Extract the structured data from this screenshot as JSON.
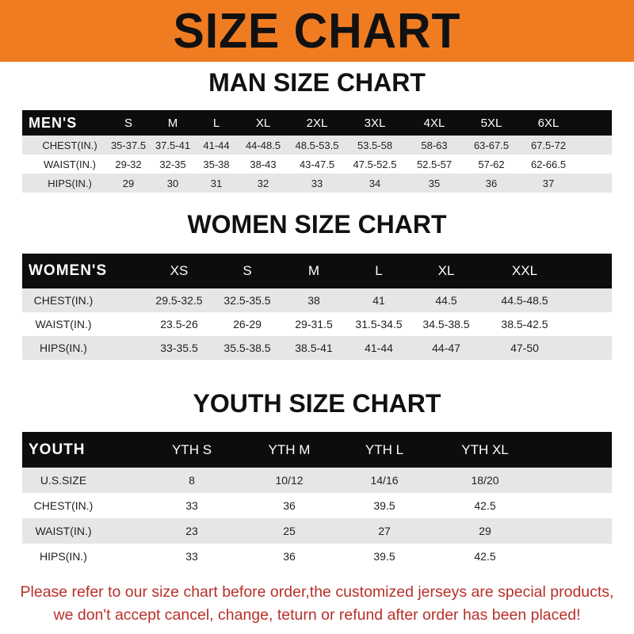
{
  "banner": {
    "title": "SIZE CHART",
    "color": "#f07c22"
  },
  "men": {
    "title": "MAN SIZE CHART",
    "headers": [
      "MEN'S",
      "S",
      "M",
      "L",
      "XL",
      "2XL",
      "3XL",
      "4XL",
      "5XL",
      "6XL"
    ],
    "rows": [
      [
        "CHEST(IN.)",
        "35-37.5",
        "37.5-41",
        "41-44",
        "44-48.5",
        "48.5-53.5",
        "53.5-58",
        "58-63",
        "63-67.5",
        "67.5-72"
      ],
      [
        "WAIST(IN.)",
        "29-32",
        "32-35",
        "35-38",
        "38-43",
        "43-47.5",
        "47.5-52.5",
        "52.5-57",
        "57-62",
        "62-66.5"
      ],
      [
        "HIPS(IN.)",
        "29",
        "30",
        "31",
        "32",
        "33",
        "34",
        "35",
        "36",
        "37"
      ]
    ]
  },
  "women": {
    "title": "WOMEN SIZE CHART",
    "headers": [
      "WOMEN'S",
      "XS",
      "S",
      "M",
      "L",
      "XL",
      "XXL"
    ],
    "rows": [
      [
        "CHEST(IN.)",
        "29.5-32.5",
        "32.5-35.5",
        "38",
        "41",
        "44.5",
        "44.5-48.5"
      ],
      [
        "WAIST(IN.)",
        "23.5-26",
        "26-29",
        "29-31.5",
        "31.5-34.5",
        "34.5-38.5",
        "38.5-42.5"
      ],
      [
        "HIPS(IN.)",
        "33-35.5",
        "35.5-38.5",
        "38.5-41",
        "41-44",
        "44-47",
        "47-50"
      ]
    ]
  },
  "youth": {
    "title": "YOUTH SIZE CHART",
    "headers": [
      "YOUTH",
      "YTH S",
      "YTH M",
      "YTH L",
      "YTH XL"
    ],
    "rows": [
      [
        "U.S.SIZE",
        "8",
        "10/12",
        "14/16",
        "18/20"
      ],
      [
        "CHEST(IN.)",
        "33",
        "36",
        "39.5",
        "42.5"
      ],
      [
        "WAIST(IN.)",
        "23",
        "25",
        "27",
        "29"
      ],
      [
        "HIPS(IN.)",
        "33",
        "36",
        "39.5",
        "42.5"
      ]
    ]
  },
  "note": {
    "line1": "Please refer to our size chart before order,the customized jerseys are special products,",
    "line2": "we don't accept cancel, change, teturn or refund after order has been placed!",
    "color": "#b8302a"
  }
}
